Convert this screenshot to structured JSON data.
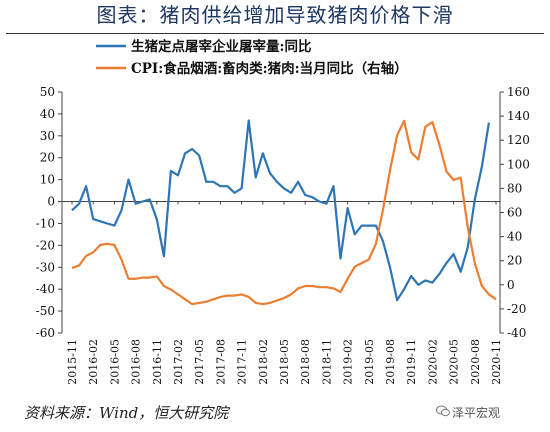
{
  "title": "图表：猪肉供给增加导致猪肉价格下滑",
  "source": "资料来源：Wind，恒大研究院",
  "watermark": "泽平宏观",
  "chart_data": {
    "type": "line",
    "x": [
      "2015-11",
      "2015-12",
      "2016-01",
      "2016-02",
      "2016-03",
      "2016-04",
      "2016-05",
      "2016-06",
      "2016-07",
      "2016-08",
      "2016-09",
      "2016-10",
      "2016-11",
      "2016-12",
      "2017-01",
      "2017-02",
      "2017-03",
      "2017-04",
      "2017-05",
      "2017-06",
      "2017-07",
      "2017-08",
      "2017-09",
      "2017-10",
      "2017-11",
      "2017-12",
      "2018-01",
      "2018-02",
      "2018-03",
      "2018-04",
      "2018-05",
      "2018-06",
      "2018-07",
      "2018-08",
      "2018-09",
      "2018-10",
      "2018-11",
      "2018-12",
      "2019-01",
      "2019-02",
      "2019-03",
      "2019-04",
      "2019-05",
      "2019-06",
      "2019-07",
      "2019-08",
      "2019-09",
      "2019-10",
      "2019-11",
      "2019-12",
      "2020-01",
      "2020-02",
      "2020-03",
      "2020-04",
      "2020-05",
      "2020-06",
      "2020-07",
      "2020-08",
      "2020-09",
      "2020-10",
      "2020-11"
    ],
    "x_ticks": [
      "2015-11",
      "2016-02",
      "2016-05",
      "2016-08",
      "2016-11",
      "2017-02",
      "2017-05",
      "2017-08",
      "2017-11",
      "2018-02",
      "2018-05",
      "2018-08",
      "2018-11",
      "2019-02",
      "2019-05",
      "2019-08",
      "2019-11",
      "2020-02",
      "2020-05",
      "2020-08",
      "2020-11"
    ],
    "ylim_left": [
      -60,
      50
    ],
    "yticks_left": [
      50,
      40,
      30,
      20,
      10,
      0,
      -10,
      -20,
      -30,
      -40,
      -50,
      -60
    ],
    "ylim_right": [
      -40,
      160
    ],
    "yticks_right": [
      160,
      140,
      120,
      100,
      80,
      60,
      40,
      20,
      0,
      -20,
      -40
    ],
    "legend_position": "top-center",
    "series": [
      {
        "name": "生猪定点屠宰企业屠宰量:同比",
        "axis": "left",
        "color": "#2e75b6",
        "values": [
          -4,
          -1,
          7,
          -8,
          -9,
          -10,
          -11,
          -4,
          10,
          -1,
          0,
          1,
          -8,
          -25,
          14,
          12,
          22,
          24,
          21,
          9,
          9,
          7,
          7,
          4,
          6,
          37,
          11,
          22,
          13,
          9,
          6,
          4,
          9,
          3,
          2,
          0,
          -1,
          7,
          -26,
          -3,
          -15,
          -11,
          -11,
          -11,
          -18,
          -30,
          -45,
          -40,
          -34,
          -38,
          -36,
          -37,
          -33,
          -28,
          -24,
          -32,
          -21,
          1,
          16,
          36,
          null
        ]
      },
      {
        "name": "CPI:食品烟酒:畜肉类:猪肉:当月同比（右轴）",
        "axis": "right",
        "color": "#ed7d31",
        "values": [
          14,
          16,
          24,
          27,
          33,
          34,
          33,
          21,
          5,
          5,
          6,
          6,
          7,
          -1,
          -4,
          -8,
          -12,
          -16,
          -15,
          -14,
          -12,
          -10,
          -9,
          -9,
          -8,
          -10,
          -15,
          -16,
          -15,
          -13,
          -11,
          -8,
          -3,
          -1,
          -1,
          -2,
          -2,
          -3,
          -6,
          5,
          15,
          18,
          21,
          34,
          62,
          95,
          124,
          136,
          110,
          104,
          131,
          135,
          116,
          94,
          87,
          89,
          48,
          18,
          -1,
          -8,
          -12
        ]
      }
    ]
  }
}
